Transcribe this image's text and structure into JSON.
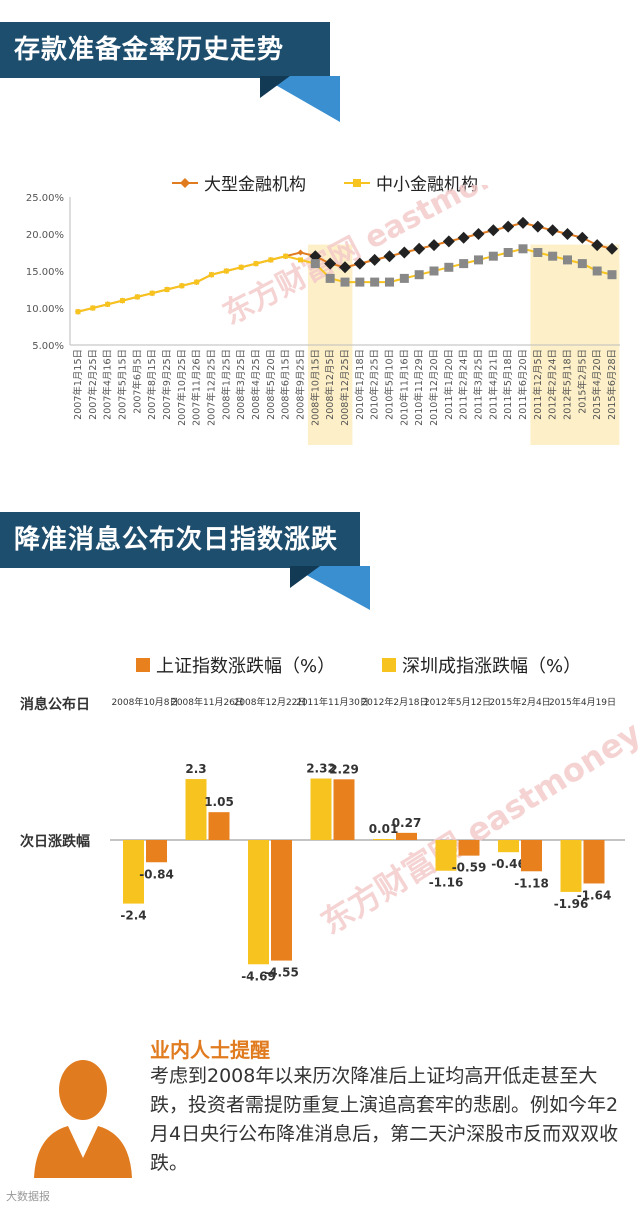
{
  "section1": {
    "title": "存款准备金率历史走势",
    "legend": [
      "大型金融机构",
      "中小金融机构"
    ]
  },
  "section2": {
    "title": "降准消息公布次日指数涨跌",
    "legend": [
      "上证指数涨跌幅（%）",
      "深圳成指涨跌幅（%）"
    ],
    "row_label_date": "消息公布日",
    "row_label_change": "次日涨跌幅"
  },
  "tip": {
    "title": "业内人士提醒",
    "body": "考虑到2008年以来历次降准后上证均高开低走甚至大跌，投资者需提防重复上演追高套牢的悲剧。例如今年2月4日央行公布降准消息后，第二天沪深股市反而双双收跌。"
  },
  "watermark": "东方财富网 eastmoney.com",
  "footer": "大数据报",
  "colors": {
    "banner": "#1e4e6e",
    "banner_accent": "#3a8fd0",
    "large_line": "#e07b1f",
    "small_line": "#f7c41f",
    "highlight": "#fdf0c8",
    "marker_dark": "#222222",
    "marker_gray": "#888888",
    "sh_bar": "#e8801e",
    "sz_bar": "#f7c41f"
  },
  "chart_data": [
    {
      "type": "line",
      "title": "存款准备金率历史走势",
      "ylim": [
        5,
        25
      ],
      "yticks": [
        "5.00%",
        "10.00%",
        "15.00%",
        "20.00%",
        "25.00%"
      ],
      "categories": [
        "2007年1月15日",
        "2007年2月25日",
        "2007年4月16日",
        "2007年5月15日",
        "2007年6月5日",
        "2007年8月15日",
        "2007年9月25日",
        "2007年10月25日",
        "2007年11月26日",
        "2007年12月25日",
        "2008年1月25日",
        "2008年3月25日",
        "2008年4月25日",
        "2008年5月20日",
        "2008年6月15日",
        "2008年9月25日",
        "2008年10月15日",
        "2008年12月5日",
        "2008年12月25日",
        "2010年1月18日",
        "2010年2月25日",
        "2010年5月10日",
        "2010年11月16日",
        "2010年11月29日",
        "2010年12月20日",
        "2011年1月20日",
        "2011年2月24日",
        "2011年3月25日",
        "2011年4月21日",
        "2011年5月18日",
        "2011年6月20日",
        "2011年12月5日",
        "2012年2月24日",
        "2012年5月18日",
        "2015年2月5日",
        "2015年4月20日",
        "2015年6月28日"
      ],
      "highlight_ranges": [
        [
          16,
          18
        ],
        [
          31,
          36
        ]
      ],
      "series": [
        {
          "name": "大型金融机构",
          "values": [
            9.5,
            10,
            10.5,
            11,
            11.5,
            12,
            12.5,
            13,
            13.5,
            14.5,
            15,
            15.5,
            16,
            16.5,
            17,
            17.5,
            17,
            16,
            15.5,
            16,
            16.5,
            17,
            17.5,
            18,
            18.5,
            19,
            19.5,
            20,
            20.5,
            21,
            21.5,
            21,
            20.5,
            20,
            19.5,
            18.5,
            18
          ],
          "dark_markers_from_index": 16
        },
        {
          "name": "中小金融机构",
          "values": [
            9.5,
            10,
            10.5,
            11,
            11.5,
            12,
            12.5,
            13,
            13.5,
            14.5,
            15,
            15.5,
            16,
            16.5,
            17,
            16.5,
            16,
            14,
            13.5,
            13.5,
            13.5,
            13.5,
            14,
            14.5,
            15,
            15.5,
            16,
            16.5,
            17,
            17.5,
            18,
            17.5,
            17,
            16.5,
            16,
            15,
            14.5
          ],
          "gray_markers_from_index": 16
        }
      ]
    },
    {
      "type": "bar",
      "title": "降准消息公布次日指数涨跌",
      "categories": [
        "2008年10月8日",
        "2008年11月26日",
        "2008年12月22日",
        "2011年11月30日",
        "2012年2月18日",
        "2012年5月12日",
        "2015年2月4日",
        "2015年4月19日"
      ],
      "series": [
        {
          "name": "上证指数涨跌幅（%）",
          "values": [
            -0.84,
            1.05,
            -4.55,
            2.29,
            0.27,
            -0.59,
            -1.18,
            -1.64
          ]
        },
        {
          "name": "深圳成指涨跌幅（%）",
          "values": [
            -2.4,
            2.3,
            -4.69,
            2.32,
            0.01,
            -1.16,
            -0.46,
            -1.96
          ]
        }
      ],
      "labels_sh": [
        "-0.84",
        "1.05",
        "-4.55",
        "2.29",
        "0.27",
        "-0.59",
        "-1.18",
        "-1.64"
      ],
      "labels_sz": [
        "-2.4",
        "2.3",
        "-4.69",
        "2.32",
        "0.01",
        "-1.16",
        "-0.46",
        "-1.96"
      ]
    }
  ]
}
